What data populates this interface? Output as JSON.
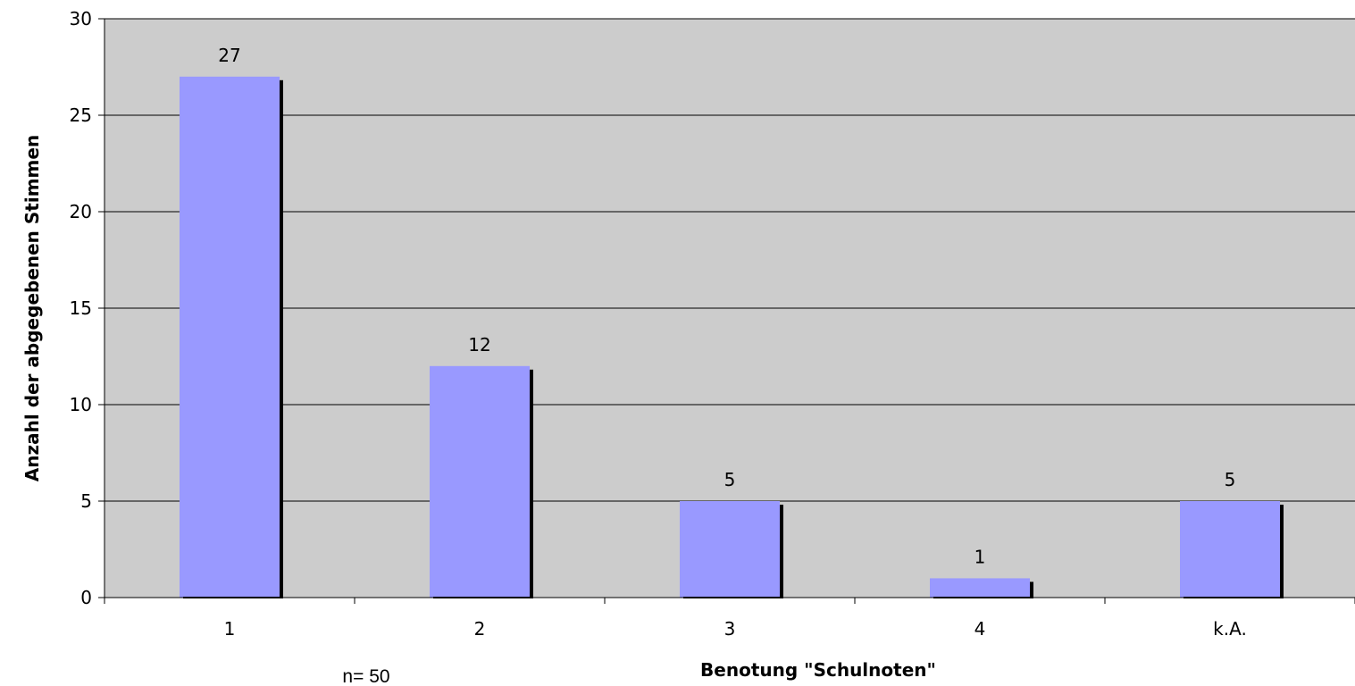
{
  "chart_data": {
    "type": "bar",
    "categories": [
      "1",
      "2",
      "3",
      "4",
      "k.A."
    ],
    "values": [
      27,
      12,
      5,
      1,
      5
    ],
    "data_labels": [
      "27",
      "12",
      "5",
      "1",
      "5"
    ],
    "xlabel": "Benotung \"Schulnoten\"",
    "ylabel": "Anzahl der abgegebenen Stimmen",
    "ylim": [
      0,
      30
    ],
    "yticks": [
      0,
      5,
      10,
      15,
      20,
      25,
      30
    ],
    "ytick_labels": [
      "0",
      "5",
      "10",
      "15",
      "20",
      "25",
      "30"
    ],
    "grid": true,
    "legend": "none",
    "annotation": "n= 50",
    "colors": {
      "bar": "#9999ff",
      "bar_shadow": "#000000",
      "plot_background": "#cccccc",
      "gridline": "#000000"
    }
  }
}
